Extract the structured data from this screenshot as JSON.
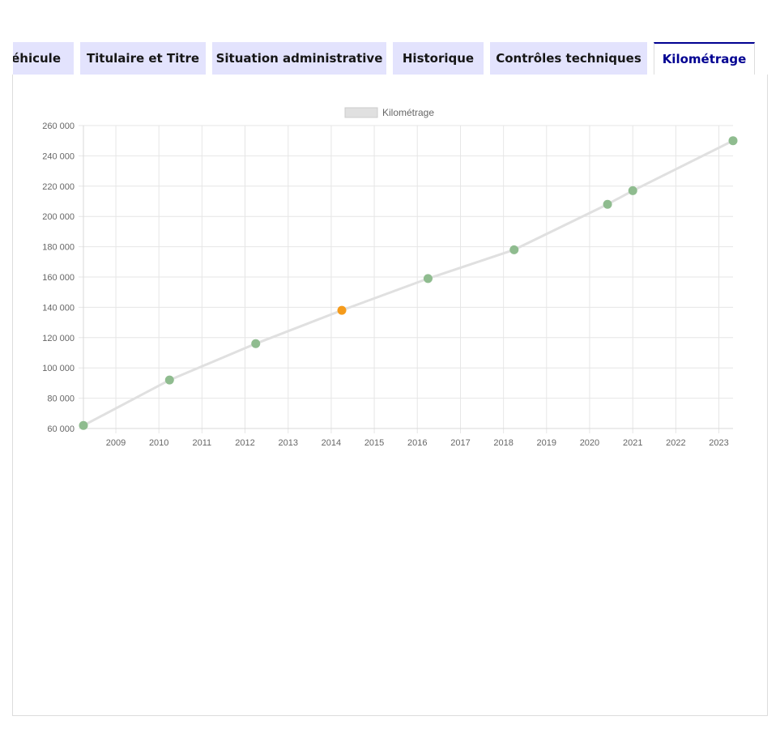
{
  "tabs": [
    {
      "label": "Véhicule",
      "active": false
    },
    {
      "label": "Titulaire et Titre",
      "active": false
    },
    {
      "label": "Situation administrative",
      "active": false
    },
    {
      "label": "Historique",
      "active": false
    },
    {
      "label": "Contrôles techniques",
      "active": false
    },
    {
      "label": "Kilométrage",
      "active": true
    }
  ],
  "colors": {
    "tab_background": "#e3e3fd",
    "tab_active_text": "#000091",
    "line": "#e0e0e0",
    "point_ok": "#8fbc8f",
    "point_highlight": "#f59b1b",
    "grid": "#e6e6e6"
  },
  "chart_data": {
    "type": "line",
    "legend": {
      "label": "Kilométrage",
      "position": "top-center"
    },
    "y_ticks": [
      "260 000",
      "240 000",
      "220 000",
      "200 000",
      "180 000",
      "160 000",
      "140 000",
      "120 000",
      "100 000",
      "80 000",
      "60 000"
    ],
    "x_ticks": [
      "2009",
      "2010",
      "2011",
      "2012",
      "2013",
      "2014",
      "2015",
      "2016",
      "2017",
      "2018",
      "2019",
      "2020",
      "2021",
      "2022",
      "2023"
    ],
    "ylim": [
      60000,
      260000
    ],
    "xlim": [
      "2008-04-01",
      "2023-05-01"
    ],
    "grid": true,
    "series": [
      {
        "name": "Kilométrage",
        "points": [
          {
            "x": "2008-04-01",
            "y": 62000,
            "status": "ok"
          },
          {
            "x": "2010-04-01",
            "y": 92000,
            "status": "ok"
          },
          {
            "x": "2012-04-01",
            "y": 116000,
            "status": "ok"
          },
          {
            "x": "2014-04-01",
            "y": 138000,
            "status": "highlight"
          },
          {
            "x": "2016-04-01",
            "y": 159000,
            "status": "ok"
          },
          {
            "x": "2018-04-01",
            "y": 178000,
            "status": "ok"
          },
          {
            "x": "2020-06-01",
            "y": 208000,
            "status": "ok"
          },
          {
            "x": "2021-01-01",
            "y": 217000,
            "status": "ok"
          },
          {
            "x": "2023-05-01",
            "y": 250000,
            "status": "ok"
          }
        ]
      }
    ]
  }
}
